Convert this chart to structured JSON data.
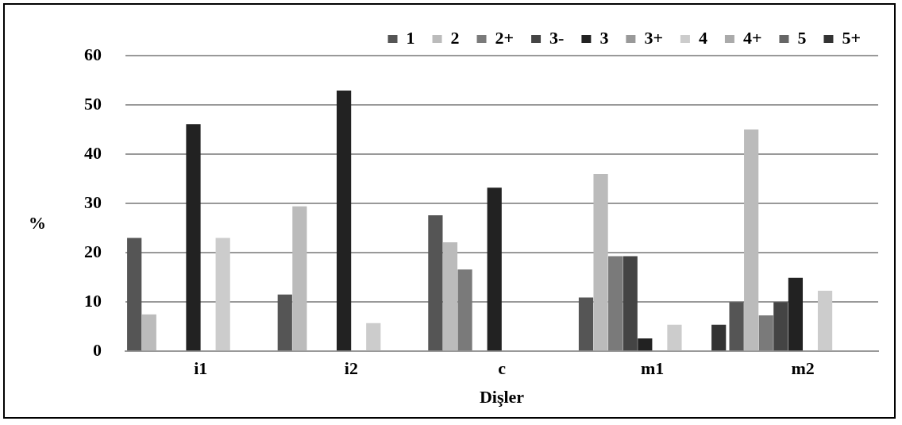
{
  "chart_data": {
    "type": "bar",
    "xlabel": "Dişler",
    "ylabel": "%",
    "categories": [
      "i1",
      "i2",
      "c",
      "m1",
      "m2"
    ],
    "series": [
      {
        "name": "1",
        "color": "#555555",
        "values": [
          23,
          11.5,
          27.6,
          10.9,
          10
        ]
      },
      {
        "name": "2",
        "color": "#bbbbbb",
        "values": [
          7.5,
          29.4,
          22.1,
          36,
          45
        ]
      },
      {
        "name": "2+",
        "color": "#7a7a7a",
        "values": [
          null,
          null,
          16.6,
          19.3,
          7.3
        ]
      },
      {
        "name": "3-",
        "color": "#444444",
        "values": [
          null,
          null,
          null,
          19.3,
          10
        ]
      },
      {
        "name": "3",
        "color": "#222222",
        "values": [
          46.1,
          52.9,
          33.2,
          2.6,
          14.9
        ]
      },
      {
        "name": "3+",
        "color": "#999999",
        "values": [
          null,
          null,
          null,
          null,
          null
        ]
      },
      {
        "name": "4",
        "color": "#cccccc",
        "values": [
          23,
          5.7,
          null,
          5.4,
          12.3
        ]
      },
      {
        "name": "4+",
        "color": "#aaaaaa",
        "values": [
          null,
          null,
          null,
          null,
          null
        ]
      },
      {
        "name": "5",
        "color": "#666666",
        "values": [
          null,
          null,
          null,
          null,
          null
        ]
      },
      {
        "name": "5+",
        "color": "#333333",
        "values": [
          null,
          null,
          null,
          5.4,
          null
        ]
      }
    ],
    "ylim": [
      0,
      60
    ],
    "yticks": [
      0,
      10,
      20,
      30,
      40,
      50,
      60
    ],
    "grid": "y",
    "legend": "top right"
  }
}
